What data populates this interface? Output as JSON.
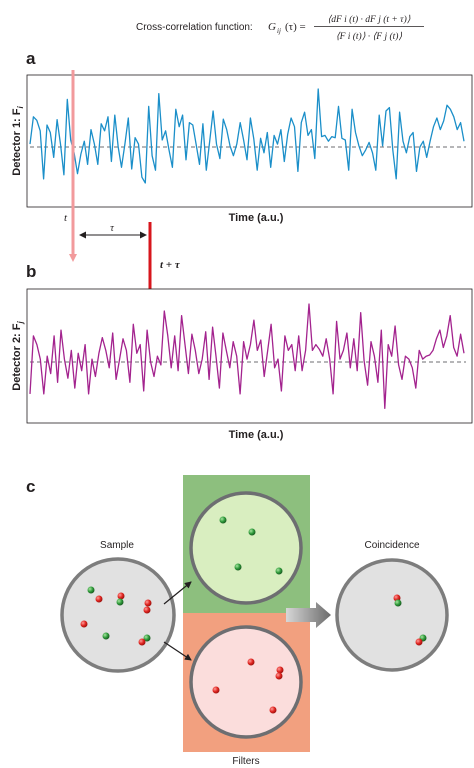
{
  "formula": {
    "label": "Cross-correlation function:",
    "lhs": "G",
    "lhs_sub": "ij",
    "lhs_arg": "(τ) =",
    "numerator": "⟨dF i (t) · dF j (t + τ)⟩",
    "denominator": "⟨F i (t)⟩ · ⟨F j (t)⟩"
  },
  "panel_a": {
    "letter": "a",
    "ylabel": "Detector 1: F",
    "ylabel_sub": "i",
    "xlabel": "Time (a.u.)",
    "line_color": "#1b8fc9"
  },
  "panel_b": {
    "letter": "b",
    "ylabel": "Detector 2: F",
    "ylabel_sub": "j",
    "xlabel": "Time (a.u.)",
    "line_color": "#a3238e"
  },
  "markers": {
    "t_label": "t",
    "tau_label": "τ",
    "t_plus_tau_label": "t + τ",
    "t_color": "#f29a9c",
    "t_plus_tau_color": "#d7161c"
  },
  "panel_c": {
    "letter": "c",
    "sample_label": "Sample",
    "coincidence_label": "Coincidence",
    "filters_label": "Filters",
    "green_filter_color": "#8dbf7e",
    "red_filter_color": "#f2a07f"
  },
  "chart_data": [
    {
      "type": "line",
      "title": "",
      "xlabel": "Time (a.u.)",
      "ylabel": "Detector 1: F_i",
      "reference_line": "dashed mean",
      "series": [
        {
          "values": [
            0.05,
            0.52,
            0.46,
            0.28,
            -0.55,
            0.38,
            0.25,
            -0.18,
            0.47,
            0.05,
            -0.48,
            0.82,
            0.12,
            -0.1,
            -0.46,
            -0.12,
            0.1,
            -0.3,
            0.3,
            0.05,
            -0.3,
            0.4,
            0.28,
            0.52,
            -0.25,
            0.55,
            0.0,
            -0.35,
            0.05,
            0.5,
            -0.38,
            0.16,
            0.05,
            -0.52,
            -0.62,
            0.7,
            -0.15,
            -0.4,
            0.92,
            0.12,
            0.28,
            -0.05,
            -0.35,
            0.65,
            0.35,
            0.55,
            -0.22,
            0.42,
            0.38,
            0.05,
            -0.3,
            0.4,
            -0.4,
            0.1,
            0.62,
            0.05,
            -0.2,
            0.48,
            0.3,
            0.02,
            -0.15,
            0.05,
            0.42,
            0.12,
            -0.22,
            0.5,
            0.14,
            -0.4,
            0.15,
            -0.1,
            0.25,
            -0.35,
            0.2,
            0.05,
            0.3,
            -0.25,
            0.22,
            0.5,
            0.35,
            -0.42,
            0.42,
            0.6,
            0.2,
            0.3,
            -0.2,
            1.0,
            0.18,
            0.2,
            0.1,
            0.18,
            0.16,
            0.7,
            0.15,
            0.12,
            -0.4,
            0.65,
            0.25,
            0.02,
            -0.15,
            -0.05,
            0.08,
            -0.1,
            -0.4,
            0.55,
            0.02,
            0.62,
            0.68,
            -0.05,
            -0.55,
            0.6,
            0.1,
            -0.1,
            0.18,
            0.25,
            -0.42,
            0.0,
            0.1,
            -0.18,
            0.1,
            0.35,
            0.5,
            0.3,
            0.45,
            0.72,
            0.65,
            0.52,
            0.3,
            0.42,
            0.1
          ]
        }
      ]
    },
    {
      "type": "line",
      "title": "",
      "xlabel": "Time (a.u.)",
      "ylabel": "Detector 2: F_j",
      "reference_line": "dashed mean",
      "series": [
        {
          "values": [
            -0.55,
            0.45,
            0.3,
            0.05,
            -0.55,
            0.1,
            -0.2,
            0.45,
            -0.35,
            0.55,
            0.05,
            -0.28,
            0.2,
            -0.45,
            0.15,
            -0.15,
            0.3,
            -0.55,
            0.05,
            -0.25,
            0.15,
            0.42,
            0.2,
            -0.1,
            0.5,
            -0.3,
            0.05,
            0.4,
            0.2,
            -0.35,
            0.65,
            0.15,
            0.3,
            -0.5,
            0.55,
            0.0,
            -0.25,
            0.1,
            -0.05,
            0.88,
            0.45,
            -0.1,
            0.45,
            -0.15,
            0.8,
            0.3,
            -0.2,
            0.48,
            0.2,
            -0.2,
            0.05,
            0.52,
            -0.3,
            0.6,
            0.1,
            -0.45,
            0.5,
            0.2,
            -0.1,
            0.35,
            0.1,
            -0.55,
            0.35,
            0.05,
            0.3,
            0.72,
            0.2,
            0.38,
            -0.25,
            0.2,
            0.65,
            -0.1,
            0.05,
            -0.5,
            0.45,
            0.2,
            0.3,
            -0.15,
            0.45,
            -0.15,
            0.2,
            1.0,
            0.2,
            0.3,
            0.22,
            0.1,
            0.4,
            0.05,
            -0.55,
            0.7,
            0.05,
            0.2,
            0.5,
            -0.1,
            0.4,
            -0.15,
            0.85,
            0.02,
            -0.4,
            0.35,
            0.1,
            -0.35,
            0.55,
            -0.8,
            0.3,
            0.1,
            0.62,
            -0.05,
            -0.3,
            0.1,
            0.05,
            -0.1,
            -0.45,
            0.2,
            0.05,
            0.1,
            0.12,
            0.2,
            0.4,
            0.55,
            0.25,
            0.45,
            0.8,
            0.25,
            0.1,
            0.48,
            0.15
          ]
        }
      ]
    }
  ]
}
